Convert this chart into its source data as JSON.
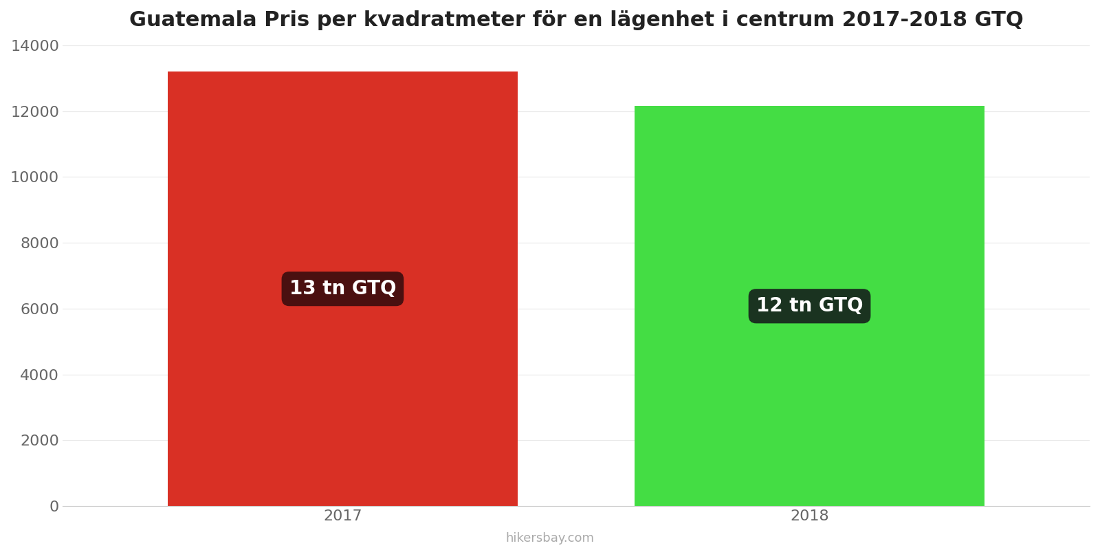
{
  "title": "Guatemala Pris per kvadratmeter för en lägenhet i centrum 2017-2018 GTQ",
  "years": [
    "2017",
    "2018"
  ],
  "values": [
    13200,
    12150
  ],
  "bar_colors": [
    "#d93025",
    "#44dd44"
  ],
  "label_texts": [
    "13 tn GTQ",
    "12 tn GTQ"
  ],
  "label_bg_colors": [
    "#4a1010",
    "#1a3320"
  ],
  "label_text_color": "#ffffff",
  "ylim": [
    0,
    14000
  ],
  "yticks": [
    0,
    2000,
    4000,
    6000,
    8000,
    10000,
    12000,
    14000
  ],
  "watermark": "hikersbay.com",
  "title_fontsize": 22,
  "tick_fontsize": 16,
  "label_fontsize": 20,
  "watermark_fontsize": 13,
  "background_color": "#ffffff",
  "x_positions": [
    1,
    2
  ],
  "bar_width": 0.75,
  "xlim": [
    0.4,
    2.6
  ]
}
